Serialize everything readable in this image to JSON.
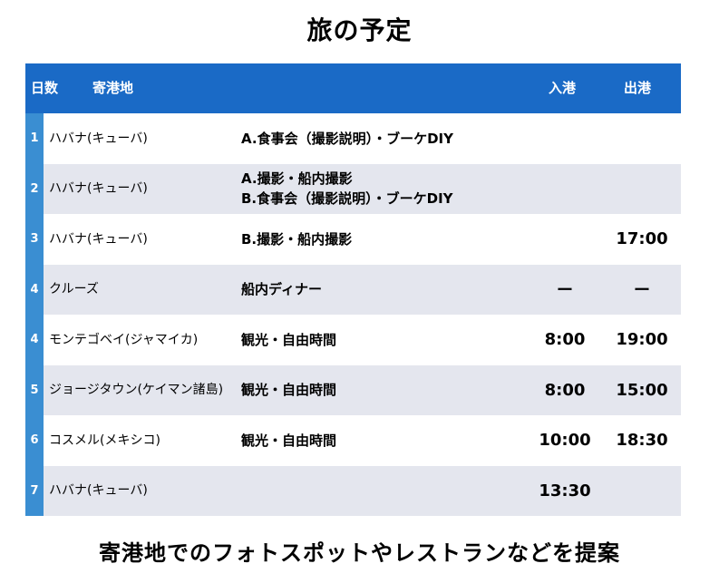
{
  "title": "旅の予定",
  "header": {
    "day": "日数",
    "port": "寄港地",
    "arrival": "入港",
    "departure": "出港"
  },
  "rows": [
    {
      "day": "1",
      "port": "ハバナ(キューバ)",
      "activity_1": "A.食事会（撮影説明）・ブーケDIY",
      "activity_2": "",
      "arrival": "",
      "departure": ""
    },
    {
      "day": "2",
      "port": "ハバナ(キューバ)",
      "activity_1": "A.撮影・船内撮影",
      "activity_2": "B.食事会（撮影説明）・ブーケDIY",
      "arrival": "",
      "departure": ""
    },
    {
      "day": "3",
      "port": "ハバナ(キューバ)",
      "activity_1": "B.撮影・船内撮影",
      "activity_2": "",
      "arrival": "",
      "departure": "17:00"
    },
    {
      "day": "4",
      "port": "クルーズ",
      "activity_1": "船内ディナー",
      "activity_2": "",
      "arrival": "ー",
      "departure": "ー"
    },
    {
      "day": "4",
      "port": "モンテゴベイ(ジャマイカ)",
      "activity_1": "観光・自由時間",
      "activity_2": "",
      "arrival": "8:00",
      "departure": "19:00"
    },
    {
      "day": "5",
      "port": "ジョージタウン(ケイマン諸島)",
      "activity_1": "観光・自由時間",
      "activity_2": "",
      "arrival": "8:00",
      "departure": "15:00"
    },
    {
      "day": "6",
      "port": "コスメル(メキシコ)",
      "activity_1": "観光・自由時間",
      "activity_2": "",
      "arrival": "10:00",
      "departure": "18:30"
    },
    {
      "day": "7",
      "port": "ハバナ(キューバ)",
      "activity_1": "",
      "activity_2": "",
      "arrival": "13:30",
      "departure": ""
    }
  ],
  "footer": "寄港地でのフォトスポットやレストランなどを提案",
  "colors": {
    "header_bg": "#1a6ac6",
    "day_cell_bg": "#3a8ed2",
    "row_alt_bg": "#e4e6ee"
  }
}
